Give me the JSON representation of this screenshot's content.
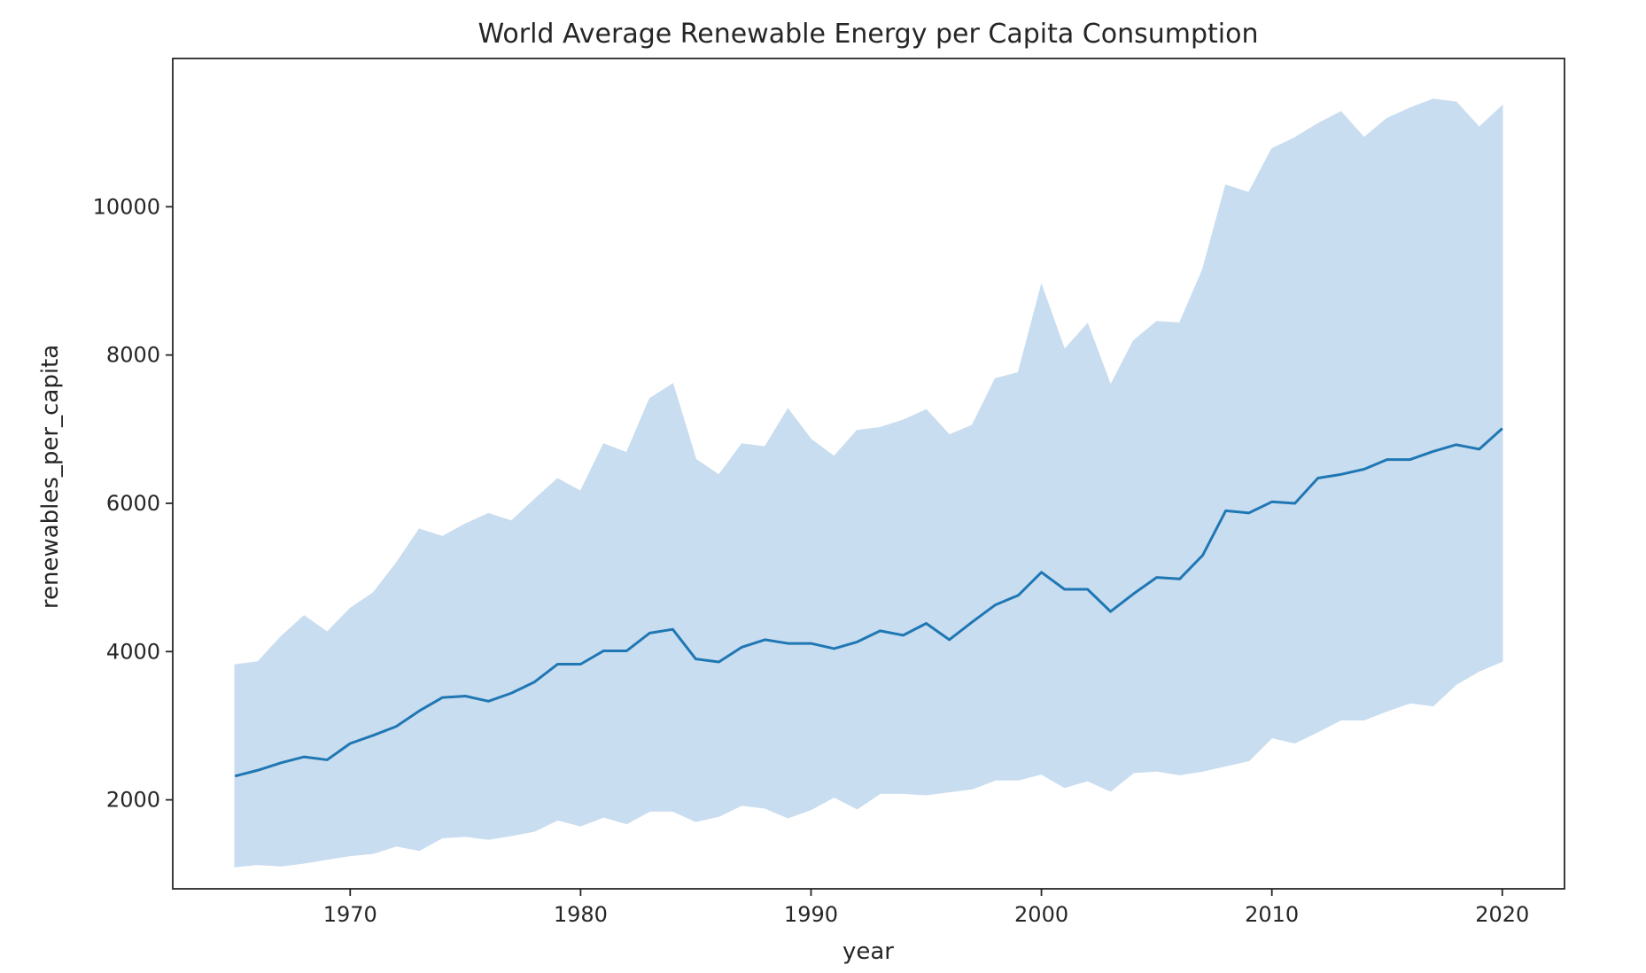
{
  "chart_data": {
    "type": "line",
    "title": "World Average Renewable Energy per Capita Consumption",
    "xlabel": "year",
    "ylabel": "renewables_per_capita",
    "xlim": [
      1962.3,
      2022.7
    ],
    "ylim": [
      800,
      12000
    ],
    "xticks": [
      1970,
      1980,
      1990,
      2000,
      2010,
      2020
    ],
    "yticks": [
      2000,
      4000,
      6000,
      8000,
      10000
    ],
    "grid": false,
    "legend": "none",
    "colors": {
      "line": "#1f77b4",
      "band": "#c9ddf0",
      "axes": "#262626"
    },
    "series": [
      {
        "x": [
          1965,
          1966,
          1967,
          1968,
          1969,
          1970,
          1971,
          1972,
          1973,
          1974,
          1975,
          1976,
          1977,
          1978,
          1979,
          1980,
          1981,
          1982,
          1983,
          1984,
          1985,
          1986,
          1987,
          1988,
          1989,
          1990,
          1991,
          1992,
          1993,
          1994,
          1995,
          1996,
          1997,
          1998,
          1999,
          2000,
          2001,
          2002,
          2003,
          2004,
          2005,
          2006,
          2007,
          2008,
          2009,
          2010,
          2011,
          2012,
          2013,
          2014,
          2015,
          2016,
          2017,
          2018,
          2019,
          2020
        ],
        "y": [
          2320,
          2400,
          2500,
          2580,
          2540,
          2760,
          2870,
          2990,
          3200,
          3380,
          3400,
          3330,
          3440,
          3590,
          3830,
          3830,
          4010,
          4010,
          4250,
          4300,
          3900,
          3860,
          4060,
          4160,
          4110,
          4110,
          4040,
          4130,
          4280,
          4220,
          4380,
          4160,
          4400,
          4630,
          4760,
          5070,
          4840,
          4840,
          4540,
          4780,
          5000,
          4980,
          5300,
          5900,
          5870,
          6020,
          6000,
          6340,
          6390,
          6460,
          6590,
          6590,
          6700,
          6790,
          6730,
          7010
        ],
        "ci_lower": [
          1100,
          1130,
          1110,
          1150,
          1200,
          1250,
          1280,
          1380,
          1320,
          1490,
          1510,
          1470,
          1520,
          1580,
          1730,
          1650,
          1770,
          1680,
          1850,
          1850,
          1710,
          1780,
          1930,
          1890,
          1760,
          1870,
          2040,
          1880,
          2090,
          2090,
          2070,
          2110,
          2150,
          2270,
          2270,
          2350,
          2170,
          2260,
          2120,
          2370,
          2390,
          2340,
          2390,
          2460,
          2530,
          2840,
          2770,
          2920,
          3080,
          3080,
          3200,
          3310,
          3270,
          3560,
          3740,
          3870
        ],
        "ci_upper": [
          3820,
          3860,
          4200,
          4480,
          4260,
          4580,
          4790,
          5190,
          5650,
          5550,
          5720,
          5860,
          5760,
          6050,
          6330,
          6160,
          6800,
          6680,
          7410,
          7610,
          6590,
          6380,
          6800,
          6760,
          7270,
          6860,
          6630,
          6980,
          7020,
          7120,
          7260,
          6920,
          7050,
          7680,
          7760,
          8940,
          8070,
          8420,
          7590,
          8190,
          8450,
          8430,
          9150,
          10290,
          10190,
          10780,
          10930,
          11120,
          11280,
          10930,
          11190,
          11330,
          11450,
          11410,
          11070,
          11360
        ]
      }
    ]
  }
}
